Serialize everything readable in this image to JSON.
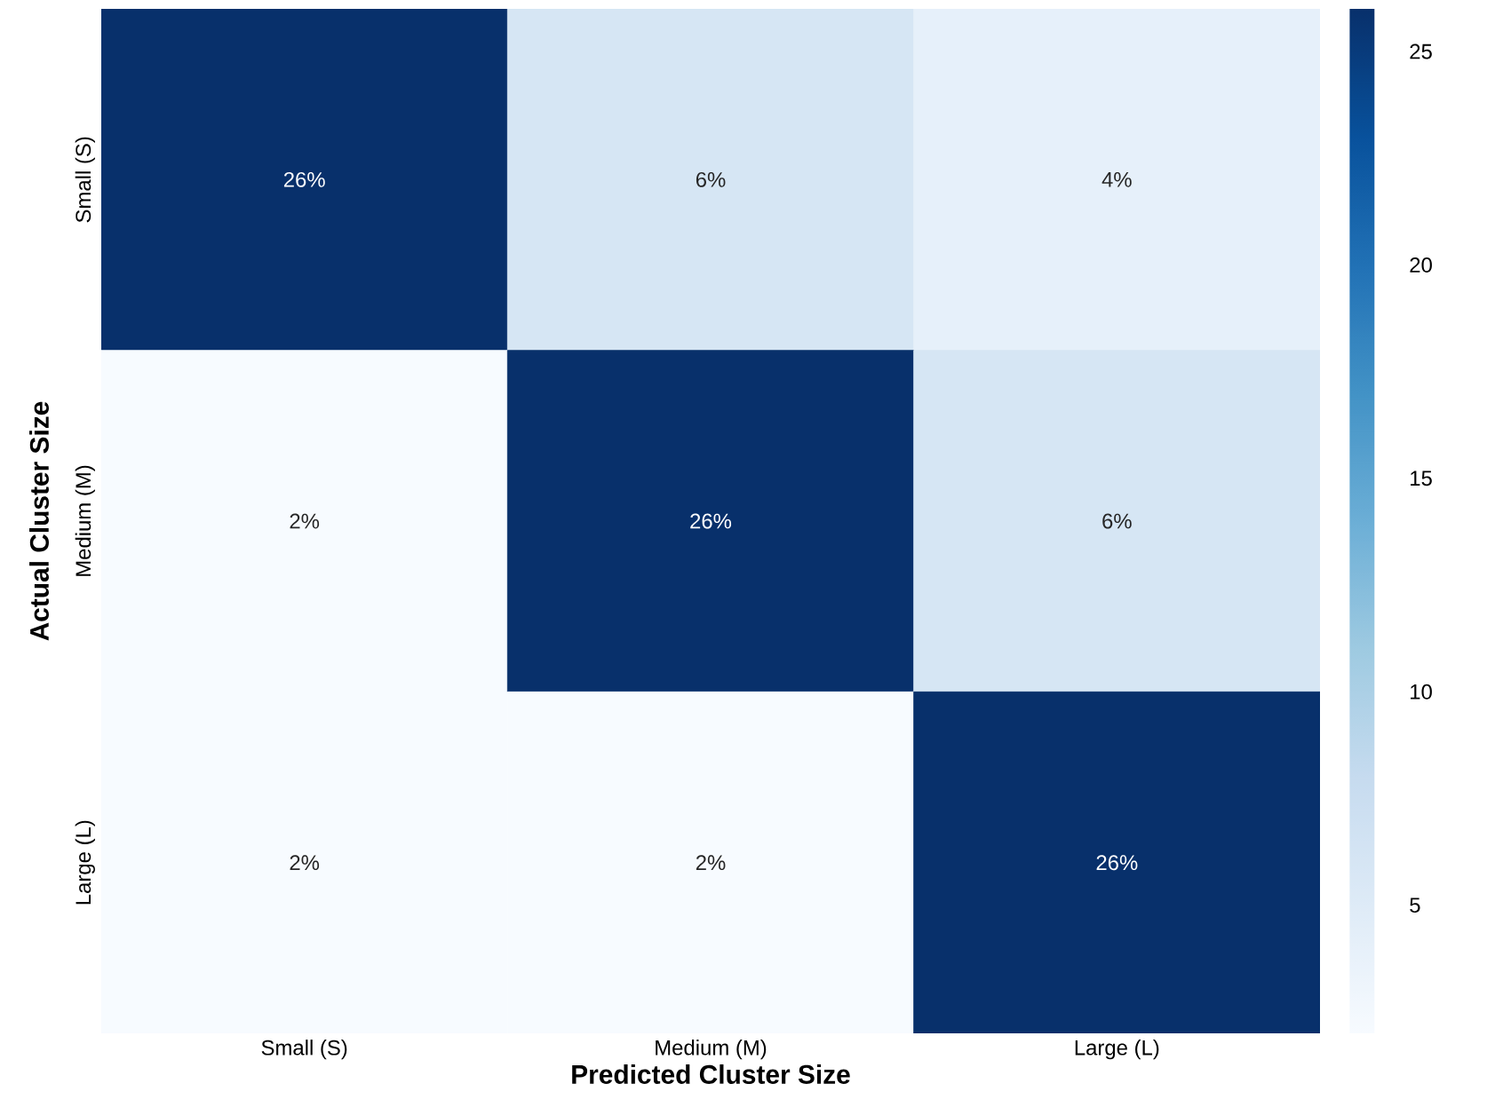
{
  "chart_data": {
    "type": "heatmap",
    "xlabel": "Predicted Cluster Size",
    "ylabel": "Actual Cluster Size",
    "categories": [
      "Small (S)",
      "Medium (M)",
      "Large (L)"
    ],
    "y_categories": [
      "Small (S)",
      "Medium (M)",
      "Large (L)"
    ],
    "cells": [
      [
        26,
        6,
        4
      ],
      [
        2,
        26,
        6
      ],
      [
        2,
        2,
        26
      ]
    ],
    "cell_labels": [
      [
        "26%",
        "6%",
        "4%"
      ],
      [
        "2%",
        "26%",
        "6%"
      ],
      [
        "2%",
        "2%",
        "26%"
      ]
    ],
    "clim": [
      2,
      26
    ],
    "cticks": [
      5,
      10,
      15,
      20,
      25
    ]
  }
}
